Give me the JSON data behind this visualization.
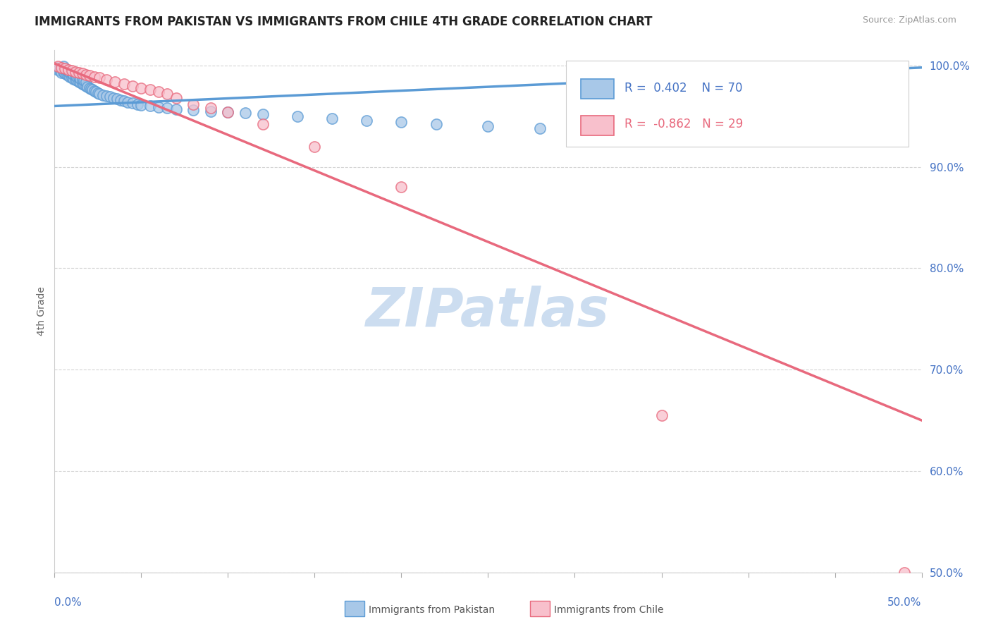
{
  "title": "IMMIGRANTS FROM PAKISTAN VS IMMIGRANTS FROM CHILE 4TH GRADE CORRELATION CHART",
  "source": "Source: ZipAtlas.com",
  "ylabel": "4th Grade",
  "xmin": 0.0,
  "xmax": 0.5,
  "ymin": 0.5,
  "ymax": 1.015,
  "pakistan_R": 0.402,
  "pakistan_N": 70,
  "chile_R": -0.862,
  "chile_N": 29,
  "pakistan_color": "#a8c8e8",
  "pakistan_edge_color": "#5b9bd5",
  "chile_color": "#f8c0cc",
  "chile_edge_color": "#e8697d",
  "tick_color": "#4472c4",
  "grid_color": "#d0d0d0",
  "watermark": "ZIPatlas",
  "watermark_color": "#ccddf0",
  "legend_label_pakistan": "Immigrants from Pakistan",
  "legend_label_chile": "Immigrants from Chile",
  "pakistan_x": [
    0.001,
    0.002,
    0.003,
    0.004,
    0.004,
    0.005,
    0.005,
    0.006,
    0.006,
    0.007,
    0.007,
    0.008,
    0.008,
    0.009,
    0.009,
    0.01,
    0.01,
    0.011,
    0.011,
    0.012,
    0.012,
    0.013,
    0.013,
    0.014,
    0.014,
    0.015,
    0.015,
    0.016,
    0.016,
    0.017,
    0.017,
    0.018,
    0.018,
    0.019,
    0.02,
    0.021,
    0.022,
    0.023,
    0.024,
    0.025,
    0.026,
    0.028,
    0.03,
    0.032,
    0.034,
    0.036,
    0.038,
    0.04,
    0.042,
    0.045,
    0.048,
    0.05,
    0.055,
    0.06,
    0.065,
    0.07,
    0.08,
    0.09,
    0.1,
    0.11,
    0.12,
    0.14,
    0.16,
    0.18,
    0.2,
    0.22,
    0.25,
    0.28,
    0.34,
    0.42
  ],
  "pakistan_y": [
    0.998,
    0.996,
    0.995,
    0.997,
    0.993,
    0.994,
    0.999,
    0.992,
    0.996,
    0.991,
    0.995,
    0.99,
    0.994,
    0.989,
    0.993,
    0.988,
    0.992,
    0.987,
    0.991,
    0.986,
    0.99,
    0.985,
    0.989,
    0.984,
    0.988,
    0.983,
    0.987,
    0.982,
    0.986,
    0.981,
    0.985,
    0.98,
    0.984,
    0.979,
    0.978,
    0.977,
    0.976,
    0.975,
    0.974,
    0.973,
    0.972,
    0.971,
    0.97,
    0.969,
    0.968,
    0.967,
    0.966,
    0.965,
    0.964,
    0.963,
    0.962,
    0.961,
    0.96,
    0.959,
    0.958,
    0.957,
    0.956,
    0.955,
    0.954,
    0.953,
    0.952,
    0.95,
    0.948,
    0.946,
    0.944,
    0.942,
    0.94,
    0.938,
    0.936,
    0.998
  ],
  "chile_x": [
    0.002,
    0.004,
    0.006,
    0.008,
    0.01,
    0.012,
    0.014,
    0.016,
    0.018,
    0.02,
    0.023,
    0.026,
    0.03,
    0.035,
    0.04,
    0.045,
    0.05,
    0.055,
    0.06,
    0.065,
    0.07,
    0.08,
    0.09,
    0.1,
    0.12,
    0.15,
    0.2,
    0.35,
    0.49
  ],
  "chile_y": [
    0.999,
    0.998,
    0.997,
    0.996,
    0.995,
    0.994,
    0.993,
    0.992,
    0.991,
    0.99,
    0.989,
    0.988,
    0.986,
    0.984,
    0.982,
    0.98,
    0.978,
    0.976,
    0.974,
    0.972,
    0.968,
    0.962,
    0.958,
    0.954,
    0.942,
    0.92,
    0.88,
    0.655,
    0.5
  ],
  "pak_trend_x": [
    0.0,
    0.5
  ],
  "pak_trend_y": [
    0.96,
    0.998
  ],
  "chile_trend_x": [
    0.0,
    0.5
  ],
  "chile_trend_y": [
    1.002,
    0.65
  ]
}
